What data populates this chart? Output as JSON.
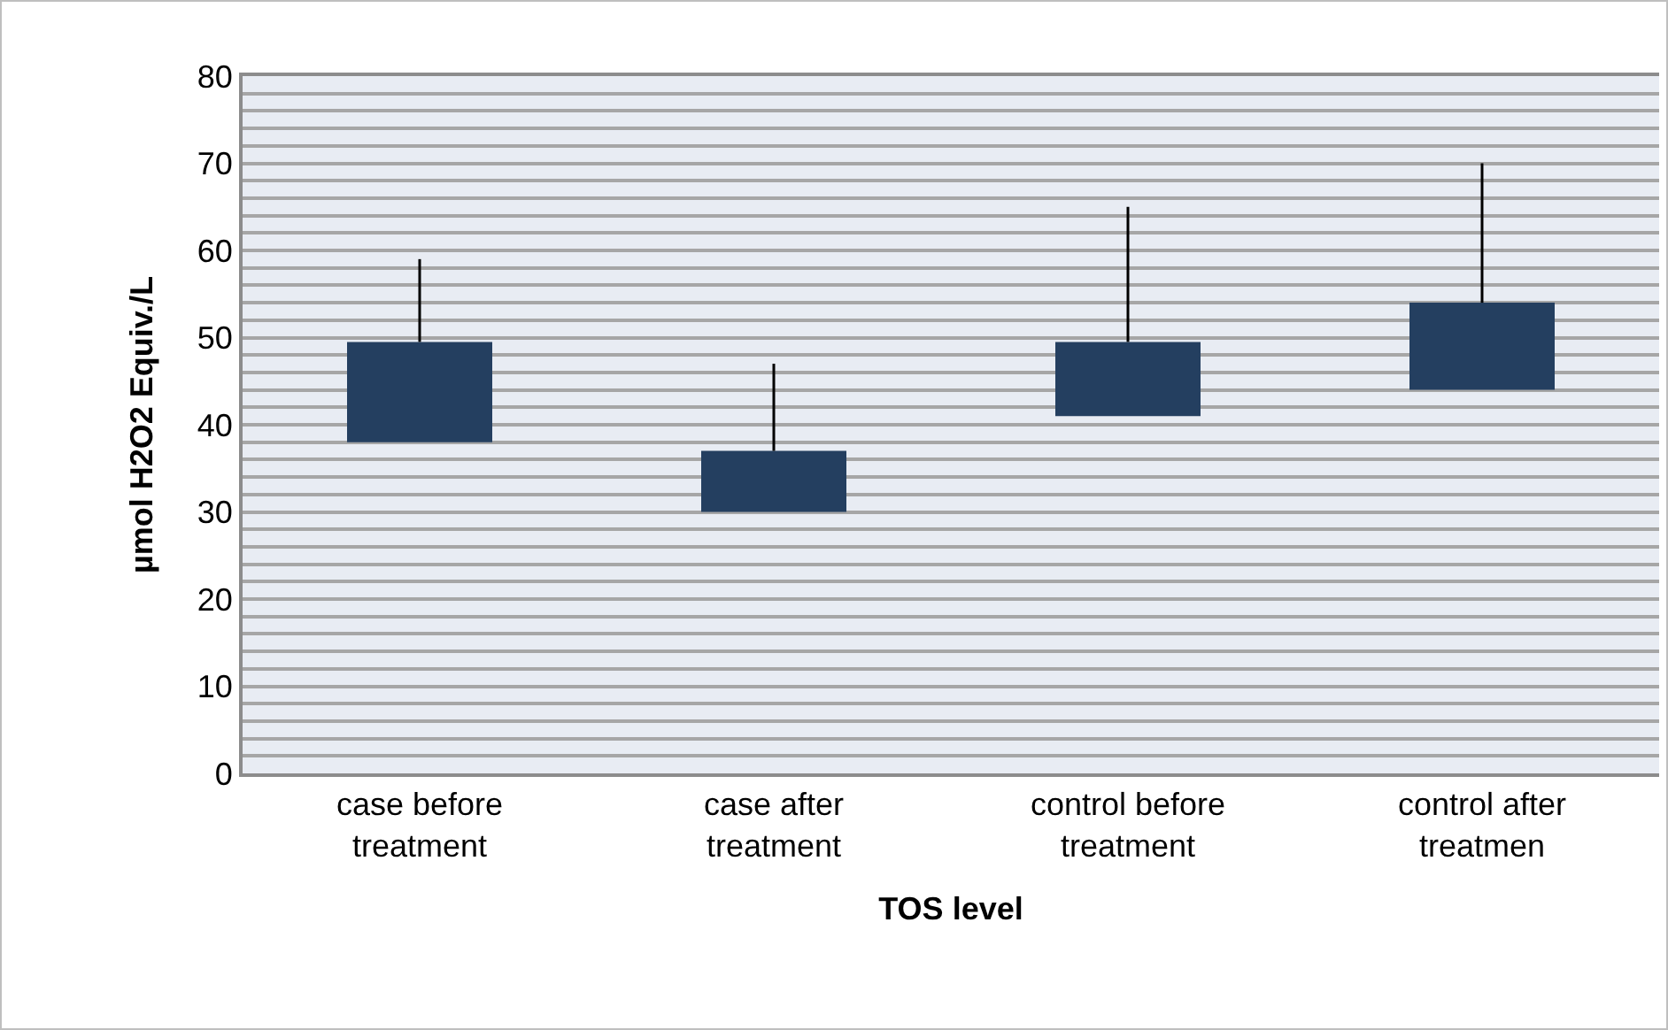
{
  "chart_data": {
    "type": "bar",
    "xlabel": "TOS level",
    "ylabel": "µmol H2O2 Equiv./L",
    "categories": [
      "case before treatment",
      "case after treatment",
      "control before treatment",
      "control after treatmen"
    ],
    "base": [
      38,
      30,
      41,
      44
    ],
    "values": [
      11.5,
      7,
      8.5,
      10
    ],
    "errors": [
      [
        49.5,
        59
      ],
      [
        37,
        47
      ],
      [
        49.5,
        65
      ],
      [
        54,
        70
      ]
    ],
    "color": "#243f60",
    "ylim": [
      0,
      80
    ],
    "yticks": [
      0,
      {
        "value": 2,
        "label": null
      },
      {
        "value": 4,
        "label": null
      },
      {
        "value": 6,
        "label": null
      },
      {
        "value": 8,
        "label": null
      },
      10,
      {
        "value": 12,
        "label": null
      },
      {
        "value": 14,
        "label": null
      },
      {
        "value": 16,
        "label": null
      },
      {
        "value": 18,
        "label": null
      },
      20,
      {
        "value": 22,
        "label": null
      },
      {
        "value": 24,
        "label": null
      },
      {
        "value": 26,
        "label": null
      },
      {
        "value": 28,
        "label": null
      },
      30,
      {
        "value": 32,
        "label": null
      },
      {
        "value": 34,
        "label": null
      },
      {
        "value": 36,
        "label": null
      },
      {
        "value": 38,
        "label": null
      },
      40,
      {
        "value": 42,
        "label": null
      },
      {
        "value": 44,
        "label": null
      },
      {
        "value": 46,
        "label": null
      },
      {
        "value": 48,
        "label": null
      },
      50,
      {
        "value": 52,
        "label": null
      },
      {
        "value": 54,
        "label": null
      },
      {
        "value": 56,
        "label": null
      },
      {
        "value": 58,
        "label": null
      },
      60,
      {
        "value": 62,
        "label": null
      },
      {
        "value": 64,
        "label": null
      },
      {
        "value": 66,
        "label": null
      },
      {
        "value": 68,
        "label": null
      },
      70,
      {
        "value": 72,
        "label": null
      },
      {
        "value": 74,
        "label": null
      },
      {
        "value": 76,
        "label": null
      },
      {
        "value": 78,
        "label": null
      },
      80
    ],
    "grid": "y"
  }
}
